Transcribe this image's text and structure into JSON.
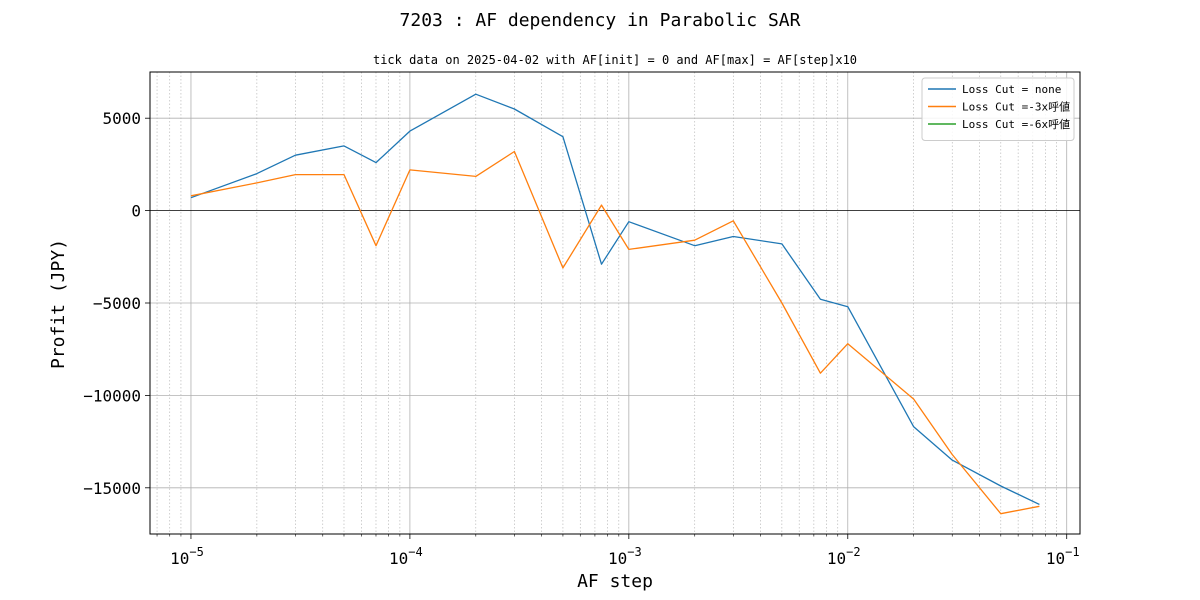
{
  "chart_data": {
    "type": "line",
    "title": "7203 : AF dependency in Parabolic SAR",
    "subtitle": "tick data on 2025-04-02 with AF[init] = 0 and AF[max] = AF[step]x10",
    "xlabel": "AF step",
    "ylabel": "Profit (JPY)",
    "x_scale": "log",
    "xlim": [
      6.5e-06,
      0.115
    ],
    "ylim": [
      -17500,
      7500
    ],
    "xticks": [
      {
        "value": 1e-05,
        "base": "10",
        "exp": "−5"
      },
      {
        "value": 0.0001,
        "base": "10",
        "exp": "−4"
      },
      {
        "value": 0.001,
        "base": "10",
        "exp": "−3"
      },
      {
        "value": 0.01,
        "base": "10",
        "exp": "−2"
      },
      {
        "value": 0.1,
        "base": "10",
        "exp": "−1"
      }
    ],
    "yticks": [
      5000,
      0,
      -5000,
      -10000,
      -15000
    ],
    "ytick_labels": [
      "5000",
      "0",
      "−5000",
      "−10000",
      "−15000"
    ],
    "grid": true,
    "legend_position": "upper-right",
    "series": [
      {
        "name": "Loss Cut = none",
        "color": "#1f77b4",
        "x": [
          1e-05,
          2e-05,
          3e-05,
          5e-05,
          7e-05,
          0.0001,
          0.0002,
          0.0003,
          0.0005,
          0.00075,
          0.001,
          0.002,
          0.003,
          0.005,
          0.0075,
          0.01,
          0.02,
          0.03,
          0.05,
          0.075
        ],
        "y": [
          700,
          2000,
          3000,
          3500,
          2600,
          4300,
          6300,
          5500,
          4000,
          -2900,
          -600,
          -1900,
          -1400,
          -1800,
          -4800,
          -5200,
          -11700,
          -13500,
          -14900,
          -15900
        ]
      },
      {
        "name": "Loss Cut =-3x呼値",
        "color": "#ff7f0e",
        "x": [
          1e-05,
          2e-05,
          3e-05,
          5e-05,
          7e-05,
          0.0001,
          0.0002,
          0.0003,
          0.0005,
          0.00075,
          0.001,
          0.002,
          0.003,
          0.005,
          0.0075,
          0.01,
          0.02,
          0.03,
          0.05,
          0.075
        ],
        "y": [
          800,
          1500,
          1950,
          1950,
          -1900,
          2200,
          1850,
          3200,
          -3100,
          300,
          -2100,
          -1600,
          -550,
          -5000,
          -8800,
          -7200,
          -10200,
          -13200,
          -16400,
          -16000
        ]
      },
      {
        "name": "Loss Cut =-6x呼値",
        "color": "#2ca02c",
        "x": [],
        "y": []
      }
    ]
  }
}
